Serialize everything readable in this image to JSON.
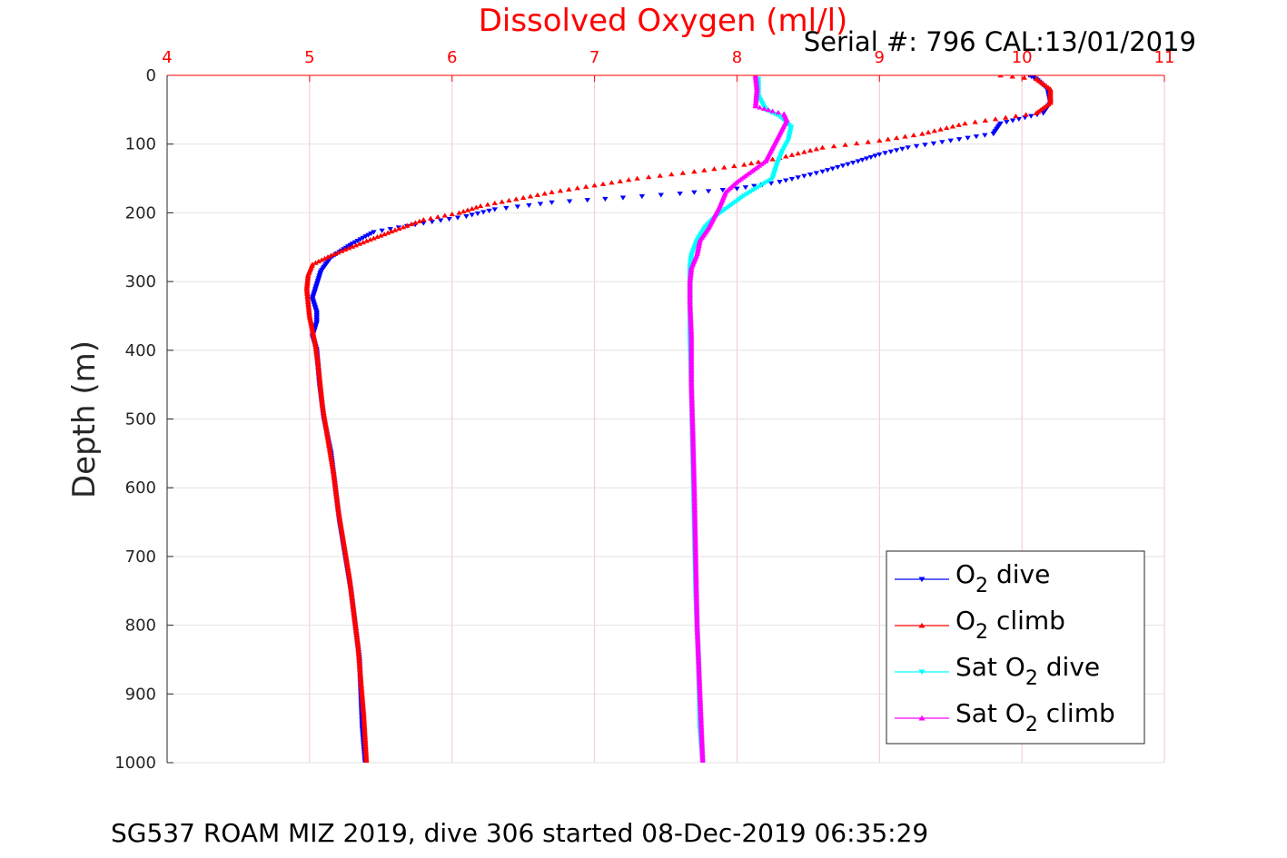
{
  "chart_data": {
    "type": "scatter",
    "title": "Dissolved Oxygen (ml/l)",
    "subtitle": "Serial #: 796  CAL:13/01/2019",
    "caption": "SG537 ROAM MIZ 2019, dive 306 started 08-Dec-2019 06:35:29",
    "xlabel": "Dissolved Oxygen (ml/l)",
    "ylabel": "Depth (m)",
    "xlim": [
      4,
      11
    ],
    "ylim": [
      0,
      1000
    ],
    "y_reversed": true,
    "x_axis_position": "top",
    "grid": true,
    "legend_position": "bottom-right",
    "x_ticks": [
      4,
      5,
      6,
      7,
      8,
      9,
      10,
      11
    ],
    "y_ticks": [
      0,
      100,
      200,
      300,
      400,
      500,
      600,
      700,
      800,
      900,
      1000
    ],
    "series": [
      {
        "name_prefix": "O",
        "name_sub": "2",
        "name_suffix": " dive",
        "color": "#0000ff",
        "marker": "triangle-down",
        "points": [
          [
            10.05,
            0
          ],
          [
            10.1,
            5
          ],
          [
            10.18,
            20
          ],
          [
            10.2,
            40
          ],
          [
            10.15,
            55
          ],
          [
            9.85,
            70
          ],
          [
            9.8,
            85
          ],
          [
            9.5,
            95
          ],
          [
            9.2,
            105
          ],
          [
            9.0,
            115
          ],
          [
            8.85,
            125
          ],
          [
            8.6,
            140
          ],
          [
            8.3,
            155
          ],
          [
            8.0,
            165
          ],
          [
            7.6,
            172
          ],
          [
            7.2,
            178
          ],
          [
            6.7,
            185
          ],
          [
            6.3,
            195
          ],
          [
            6.1,
            205
          ],
          [
            5.8,
            215
          ],
          [
            5.45,
            228
          ],
          [
            5.3,
            245
          ],
          [
            5.15,
            265
          ],
          [
            5.08,
            285
          ],
          [
            5.05,
            305
          ],
          [
            5.02,
            325
          ],
          [
            5.05,
            345
          ],
          [
            5.05,
            360
          ],
          [
            5.02,
            380
          ],
          [
            5.05,
            400
          ],
          [
            5.07,
            450
          ],
          [
            5.1,
            500
          ],
          [
            5.15,
            550
          ],
          [
            5.18,
            600
          ],
          [
            5.21,
            650
          ],
          [
            5.25,
            700
          ],
          [
            5.29,
            750
          ],
          [
            5.32,
            800
          ],
          [
            5.35,
            850
          ],
          [
            5.36,
            900
          ],
          [
            5.37,
            950
          ],
          [
            5.39,
            1000
          ]
        ]
      },
      {
        "name_prefix": "O",
        "name_sub": "2",
        "name_suffix": " climb",
        "color": "#ff0000",
        "marker": "triangle-up",
        "points": [
          [
            9.85,
            0
          ],
          [
            10.1,
            5
          ],
          [
            10.2,
            20
          ],
          [
            10.2,
            40
          ],
          [
            10.1,
            55
          ],
          [
            9.6,
            70
          ],
          [
            9.3,
            85
          ],
          [
            9.0,
            95
          ],
          [
            8.6,
            105
          ],
          [
            8.3,
            120
          ],
          [
            8.05,
            130
          ],
          [
            7.7,
            140
          ],
          [
            7.3,
            150
          ],
          [
            7.0,
            160
          ],
          [
            6.7,
            170
          ],
          [
            6.2,
            190
          ],
          [
            6.05,
            200
          ],
          [
            5.8,
            210
          ],
          [
            5.6,
            225
          ],
          [
            5.35,
            245
          ],
          [
            5.15,
            262
          ],
          [
            5.02,
            275
          ],
          [
            4.99,
            290
          ],
          [
            4.98,
            310
          ],
          [
            4.99,
            330
          ],
          [
            5.0,
            350
          ],
          [
            5.02,
            370
          ],
          [
            5.04,
            390
          ],
          [
            5.06,
            420
          ],
          [
            5.09,
            480
          ],
          [
            5.13,
            530
          ],
          [
            5.17,
            580
          ],
          [
            5.2,
            630
          ],
          [
            5.24,
            680
          ],
          [
            5.28,
            730
          ],
          [
            5.31,
            780
          ],
          [
            5.34,
            830
          ],
          [
            5.36,
            880
          ],
          [
            5.38,
            930
          ],
          [
            5.4,
            1000
          ]
        ]
      },
      {
        "name_prefix": "Sat O",
        "name_sub": "2",
        "name_suffix": " dive",
        "color": "#00ffff",
        "marker": "triangle-down",
        "points": [
          [
            8.15,
            5
          ],
          [
            8.15,
            30
          ],
          [
            8.2,
            50
          ],
          [
            8.3,
            60
          ],
          [
            8.38,
            75
          ],
          [
            8.36,
            95
          ],
          [
            8.32,
            110
          ],
          [
            8.28,
            130
          ],
          [
            8.25,
            150
          ],
          [
            8.05,
            175
          ],
          [
            7.95,
            190
          ],
          [
            7.85,
            205
          ],
          [
            7.78,
            220
          ],
          [
            7.72,
            240
          ],
          [
            7.68,
            262
          ],
          [
            7.67,
            280
          ],
          [
            7.67,
            320
          ],
          [
            7.67,
            380
          ],
          [
            7.68,
            450
          ],
          [
            7.69,
            550
          ],
          [
            7.7,
            650
          ],
          [
            7.71,
            750
          ],
          [
            7.73,
            850
          ],
          [
            7.74,
            950
          ],
          [
            7.76,
            1000
          ]
        ]
      },
      {
        "name_prefix": "Sat O",
        "name_sub": "2",
        "name_suffix": " climb",
        "color": "#ff00ff",
        "marker": "triangle-up",
        "points": [
          [
            8.13,
            0
          ],
          [
            8.14,
            20
          ],
          [
            8.13,
            45
          ],
          [
            8.25,
            52
          ],
          [
            8.33,
            56
          ],
          [
            8.35,
            65
          ],
          [
            8.3,
            85
          ],
          [
            8.25,
            105
          ],
          [
            8.2,
            125
          ],
          [
            8.1,
            140
          ],
          [
            8.0,
            155
          ],
          [
            7.92,
            170
          ],
          [
            7.88,
            190
          ],
          [
            7.83,
            210
          ],
          [
            7.8,
            222
          ],
          [
            7.74,
            240
          ],
          [
            7.72,
            260
          ],
          [
            7.68,
            280
          ],
          [
            7.67,
            300
          ],
          [
            7.67,
            330
          ],
          [
            7.68,
            380
          ],
          [
            7.68,
            450
          ],
          [
            7.69,
            520
          ],
          [
            7.7,
            600
          ],
          [
            7.71,
            700
          ],
          [
            7.72,
            800
          ],
          [
            7.74,
            900
          ],
          [
            7.76,
            1000
          ]
        ]
      }
    ]
  }
}
